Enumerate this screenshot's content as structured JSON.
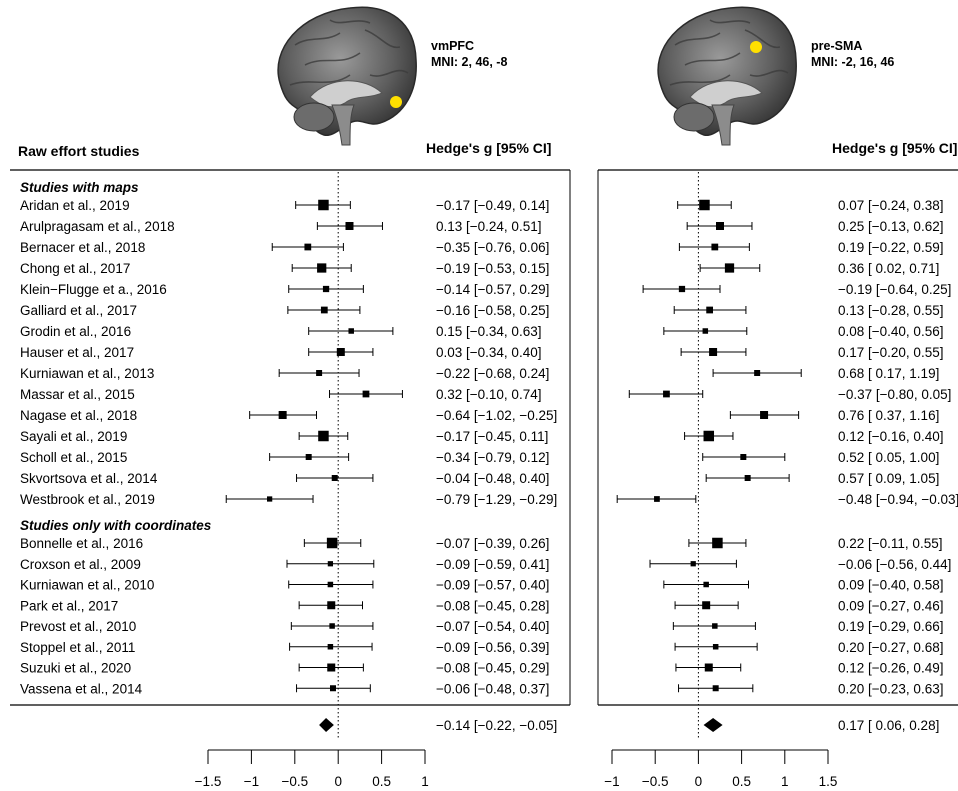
{
  "header": {
    "title": "Raw effort studies",
    "metric_label": "Hedge's g [95% CI]"
  },
  "sections": [
    {
      "label": "Studies with maps"
    },
    {
      "label": "Studies only with coordinates"
    }
  ],
  "panels": [
    {
      "region": "vmPFC",
      "mni": "MNI: 2, 46, -8",
      "region_color": "#ffe000"
    },
    {
      "region": "pre-SMA",
      "mni": "MNI: -2, 16, 46",
      "region_color": "#ffe000"
    }
  ],
  "chart_data": [
    {
      "type": "forest",
      "panel": "vmPFC",
      "xlim": [
        -1.5,
        1
      ],
      "xticks": [
        -1.5,
        -1,
        -0.5,
        0,
        0.5,
        1
      ],
      "xtick_labels": [
        "−1.5",
        "−1",
        "−0.5",
        "0",
        "0.5",
        "1"
      ],
      "reference_line": 0,
      "studies": [
        {
          "study": "Aridan et al., 2019",
          "g": -0.17,
          "lo": -0.49,
          "hi": 0.14,
          "text": "−0.17 [−0.49,  0.14]",
          "w": 3
        },
        {
          "study": "Arulpragasam et al., 2018",
          "g": 0.13,
          "lo": -0.24,
          "hi": 0.51,
          "text": "0.13 [−0.24,  0.51]",
          "w": 2
        },
        {
          "study": "Bernacer et al., 2018",
          "g": -0.35,
          "lo": -0.76,
          "hi": 0.06,
          "text": "−0.35 [−0.76,  0.06]",
          "w": 1.5
        },
        {
          "study": "Chong et al., 2017",
          "g": -0.19,
          "lo": -0.53,
          "hi": 0.15,
          "text": "−0.19 [−0.53,  0.15]",
          "w": 2.5
        },
        {
          "study": "Klein−Flugge et a., 2016",
          "g": -0.14,
          "lo": -0.57,
          "hi": 0.29,
          "text": "−0.14 [−0.57,  0.29]",
          "w": 1.3
        },
        {
          "study": "Galliard et al., 2017",
          "g": -0.16,
          "lo": -0.58,
          "hi": 0.25,
          "text": "−0.16 [−0.58,  0.25]",
          "w": 1.5
        },
        {
          "study": "Grodin et al., 2016",
          "g": 0.15,
          "lo": -0.34,
          "hi": 0.63,
          "text": "0.15 [−0.34,  0.63]",
          "w": 1
        },
        {
          "study": "Hauser et al., 2017",
          "g": 0.03,
          "lo": -0.34,
          "hi": 0.4,
          "text": "0.03 [−0.34,  0.40]",
          "w": 2
        },
        {
          "study": "Kurniawan et al., 2013",
          "g": -0.22,
          "lo": -0.68,
          "hi": 0.24,
          "text": "−0.22 [−0.68,  0.24]",
          "w": 1.2
        },
        {
          "study": "Massar et al., 2015",
          "g": 0.32,
          "lo": -0.1,
          "hi": 0.74,
          "text": "0.32 [−0.10,  0.74]",
          "w": 1.5
        },
        {
          "study": "Nagase et al., 2018",
          "g": -0.64,
          "lo": -1.02,
          "hi": -0.25,
          "text": "−0.64 [−1.02, −0.25]",
          "w": 2
        },
        {
          "study": "Sayali et al., 2019",
          "g": -0.17,
          "lo": -0.45,
          "hi": 0.11,
          "text": "−0.17 [−0.45,  0.11]",
          "w": 3
        },
        {
          "study": "Scholl et al., 2015",
          "g": -0.34,
          "lo": -0.79,
          "hi": 0.12,
          "text": "−0.34 [−0.79,  0.12]",
          "w": 1.2
        },
        {
          "study": "Skvortsova et al., 2014",
          "g": -0.04,
          "lo": -0.48,
          "hi": 0.4,
          "text": "−0.04 [−0.48,  0.40]",
          "w": 1.2
        },
        {
          "study": "Westbrook et al., 2019",
          "g": -0.79,
          "lo": -1.29,
          "hi": -0.29,
          "text": "−0.79 [−1.29, −0.29]",
          "w": 0.9
        },
        {
          "study": "Bonnelle et al., 2016",
          "g": -0.07,
          "lo": -0.39,
          "hi": 0.26,
          "text": "−0.07 [−0.39,  0.26]",
          "w": 3
        },
        {
          "study": "Croxson et al., 2009",
          "g": -0.09,
          "lo": -0.59,
          "hi": 0.41,
          "text": "−0.09 [−0.59,  0.41]",
          "w": 0.9
        },
        {
          "study": "Kurniawan et al., 2010",
          "g": -0.09,
          "lo": -0.57,
          "hi": 0.4,
          "text": "−0.09 [−0.57,  0.40]",
          "w": 1
        },
        {
          "study": "Park et al., 2017",
          "g": -0.08,
          "lo": -0.45,
          "hi": 0.28,
          "text": "−0.08 [−0.45,  0.28]",
          "w": 2
        },
        {
          "study": "Prevost et al., 2010",
          "g": -0.07,
          "lo": -0.54,
          "hi": 0.4,
          "text": "−0.07 [−0.54,  0.40]",
          "w": 1
        },
        {
          "study": "Stoppel et al., 2011",
          "g": -0.09,
          "lo": -0.56,
          "hi": 0.39,
          "text": "−0.09 [−0.56,  0.39]",
          "w": 1
        },
        {
          "study": "Suzuki et al., 2020",
          "g": -0.08,
          "lo": -0.45,
          "hi": 0.29,
          "text": "−0.08 [−0.45,  0.29]",
          "w": 2
        },
        {
          "study": "Vassena et al., 2014",
          "g": -0.06,
          "lo": -0.48,
          "hi": 0.37,
          "text": "−0.06 [−0.48,  0.37]",
          "w": 1.2
        }
      ],
      "summary": {
        "g": -0.14,
        "lo": -0.22,
        "hi": -0.05,
        "text": "−0.14 [−0.22, −0.05]"
      }
    },
    {
      "type": "forest",
      "panel": "pre-SMA",
      "xlim": [
        -1,
        1.5
      ],
      "xticks": [
        -1,
        -0.5,
        0,
        0.5,
        1,
        1.5
      ],
      "xtick_labels": [
        "−1",
        "−0.5",
        "0",
        "0.5",
        "1",
        "1.5"
      ],
      "reference_line": 0,
      "studies": [
        {
          "study": "Aridan et al., 2019",
          "g": 0.07,
          "lo": -0.24,
          "hi": 0.38,
          "text": "0.07 [−0.24,  0.38]",
          "w": 3
        },
        {
          "study": "Arulpragasam et al., 2018",
          "g": 0.25,
          "lo": -0.13,
          "hi": 0.62,
          "text": "0.25 [−0.13,  0.62]",
          "w": 2
        },
        {
          "study": "Bernacer et al., 2018",
          "g": 0.19,
          "lo": -0.22,
          "hi": 0.59,
          "text": "0.19 [−0.22,  0.59]",
          "w": 1.5
        },
        {
          "study": "Chong et al., 2017",
          "g": 0.36,
          "lo": 0.02,
          "hi": 0.71,
          "text": "0.36 [ 0.02,  0.71]",
          "w": 2.5
        },
        {
          "study": "Klein−Flugge et a., 2016",
          "g": -0.19,
          "lo": -0.64,
          "hi": 0.25,
          "text": "−0.19 [−0.64,  0.25]",
          "w": 1.3
        },
        {
          "study": "Galliard et al., 2017",
          "g": 0.13,
          "lo": -0.28,
          "hi": 0.55,
          "text": "0.13 [−0.28,  0.55]",
          "w": 1.5
        },
        {
          "study": "Grodin et al., 2016",
          "g": 0.08,
          "lo": -0.4,
          "hi": 0.56,
          "text": "0.08 [−0.40,  0.56]",
          "w": 1
        },
        {
          "study": "Hauser et al., 2017",
          "g": 0.17,
          "lo": -0.2,
          "hi": 0.55,
          "text": "0.17 [−0.20,  0.55]",
          "w": 2
        },
        {
          "study": "Kurniawan et al., 2013",
          "g": 0.68,
          "lo": 0.17,
          "hi": 1.19,
          "text": "0.68 [ 0.17,  1.19]",
          "w": 1.2
        },
        {
          "study": "Massar et al., 2015",
          "g": -0.37,
          "lo": -0.8,
          "hi": 0.05,
          "text": "−0.37 [−0.80,  0.05]",
          "w": 1.5
        },
        {
          "study": "Nagase et al., 2018",
          "g": 0.76,
          "lo": 0.37,
          "hi": 1.16,
          "text": "0.76 [ 0.37,  1.16]",
          "w": 2
        },
        {
          "study": "Sayali et al., 2019",
          "g": 0.12,
          "lo": -0.16,
          "hi": 0.4,
          "text": "0.12 [−0.16,  0.40]",
          "w": 3
        },
        {
          "study": "Scholl et al., 2015",
          "g": 0.52,
          "lo": 0.05,
          "hi": 1.0,
          "text": "0.52 [ 0.05,  1.00]",
          "w": 1.2
        },
        {
          "study": "Skvortsova et al., 2014",
          "g": 0.57,
          "lo": 0.09,
          "hi": 1.05,
          "text": "0.57 [ 0.09,  1.05]",
          "w": 1.2
        },
        {
          "study": "Westbrook et al., 2019",
          "g": -0.48,
          "lo": -0.94,
          "hi": -0.03,
          "text": "−0.48 [−0.94, −0.03]",
          "w": 1.1
        },
        {
          "study": "Bonnelle et al., 2016",
          "g": 0.22,
          "lo": -0.11,
          "hi": 0.55,
          "text": "0.22 [−0.11,  0.55]",
          "w": 3
        },
        {
          "study": "Croxson et al., 2009",
          "g": -0.06,
          "lo": -0.56,
          "hi": 0.44,
          "text": "−0.06 [−0.56,  0.44]",
          "w": 0.9
        },
        {
          "study": "Kurniawan et al., 2010",
          "g": 0.09,
          "lo": -0.4,
          "hi": 0.58,
          "text": "0.09 [−0.40,  0.58]",
          "w": 1
        },
        {
          "study": "Park et al., 2017",
          "g": 0.09,
          "lo": -0.27,
          "hi": 0.46,
          "text": "0.09 [−0.27,  0.46]",
          "w": 2
        },
        {
          "study": "Prevost et al., 2010",
          "g": 0.19,
          "lo": -0.29,
          "hi": 0.66,
          "text": "0.19 [−0.29,  0.66]",
          "w": 1
        },
        {
          "study": "Stoppel et al., 2011",
          "g": 0.2,
          "lo": -0.27,
          "hi": 0.68,
          "text": "0.20 [−0.27,  0.68]",
          "w": 1
        },
        {
          "study": "Suzuki et al., 2020",
          "g": 0.12,
          "lo": -0.26,
          "hi": 0.49,
          "text": "0.12 [−0.26,  0.49]",
          "w": 2
        },
        {
          "study": "Vassena et al., 2014",
          "g": 0.2,
          "lo": -0.23,
          "hi": 0.63,
          "text": "0.20 [−0.23,  0.63]",
          "w": 1.2
        }
      ],
      "summary": {
        "g": 0.17,
        "lo": 0.06,
        "hi": 0.28,
        "text": "0.17 [ 0.06,  0.28]"
      }
    }
  ]
}
